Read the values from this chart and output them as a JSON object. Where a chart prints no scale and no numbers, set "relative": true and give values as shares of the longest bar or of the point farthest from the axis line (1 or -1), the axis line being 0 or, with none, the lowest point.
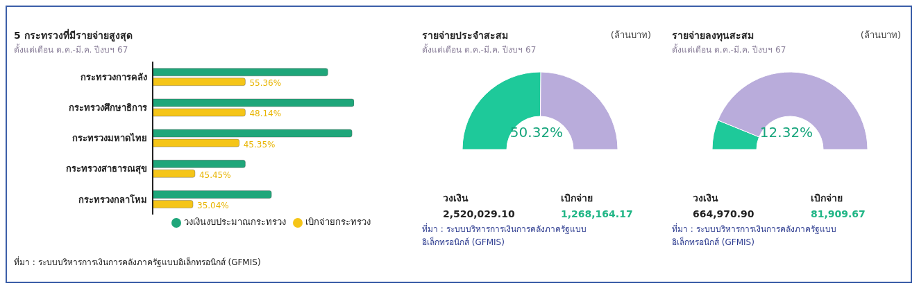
{
  "chart_data": [
    {
      "type": "bar",
      "title": "5 กระทรวงที่มีรายจ่ายสูงสุด",
      "subtitle": "ตั้งแต่เดือน ต.ค.-มี.ค. ปีงบฯ 67",
      "orientation": "horizontal",
      "relative": true,
      "categories": [
        "กระทรวงการคลัง",
        "กระทรวงศึกษาธิการ",
        "กระทรวงมหาดไทย",
        "กระทรวงสาธารณสุข",
        "กระทรวงกลาโหม"
      ],
      "series": [
        {
          "name": "วงเงินงบประมาณกระทรวง",
          "color": "#1fa67a",
          "values": [
            0.87,
            1,
            0.99,
            0.46,
            0.59
          ]
        },
        {
          "name": "เบิกจ่ายกระทรวง",
          "color": "#f5c518",
          "values": [
            0.46,
            0.46,
            0.43,
            0.21,
            0.2
          ]
        }
      ],
      "legend": "bottom",
      "annotations": [
        {
          "text": "55.36%",
          "x": 0.46,
          "y": "กระทรวงการคลัง"
        },
        {
          "text": "48.14%",
          "x": 0.46,
          "y": "กระทรวงศึกษาธิการ"
        },
        {
          "text": "45.35%",
          "x": 0.43,
          "y": "กระทรวงมหาดไทย"
        },
        {
          "text": "45.45%",
          "x": 0.21,
          "y": "กระทรวงสาธารณสุข"
        },
        {
          "text": "35.04%",
          "x": 0.2,
          "y": "กระทรวงกลาโหม"
        },
        "ที่มา : ระบบบริหารการเงินการคลังภาครัฐแบบอิเล็กทรอนิกส์ (GFMIS)"
      ]
    },
    {
      "type": "donut",
      "title": "รายจ่ายประจำสะสม",
      "subtitle": "ตั้งแต่เดือน ต.ค.-มี.ค. ปีงบฯ 67",
      "categories": [
        null,
        null
      ],
      "values": [
        50.32,
        49.68
      ],
      "colors": [
        "#1ec99a",
        "#b9acdb"
      ],
      "annotations": [
        "(ล้านบาท)",
        "50.32%",
        "วงเงิน",
        "2,520,029.10",
        "เบิกจ่าย",
        "1,268,164.17",
        "ที่มา : ระบบบริหารการเงินการคลังภาครัฐแบบอิเล็กทรอนิกส์ (GFMIS)"
      ]
    },
    {
      "type": "donut",
      "title": "รายจ่ายลงทุนสะสม",
      "subtitle": "ตั้งแต่เดือน ต.ค.-มี.ค. ปีงบฯ 67",
      "categories": [
        null,
        null
      ],
      "values": [
        12.32,
        87.68
      ],
      "colors": [
        "#1ec99a",
        "#b9acdb"
      ],
      "annotations": [
        "(ล้านบาท)",
        "12.32%",
        "วงเงิน",
        "664,970.90",
        "เบิกจ่าย",
        "81,909.67",
        "ที่มา : ระบบบริหารการเงินการคลังภาครัฐแบบอิเล็กทรอนิกส์ (GFMIS)"
      ]
    }
  ]
}
